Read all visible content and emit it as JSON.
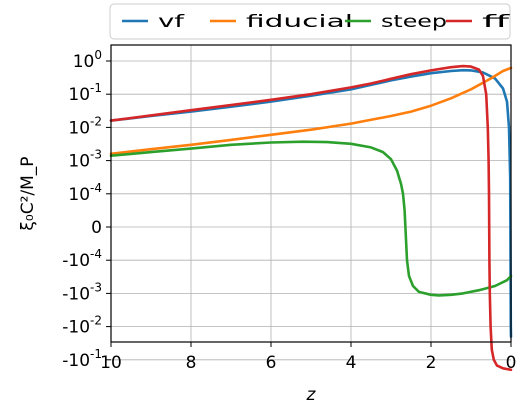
{
  "chart_data": {
    "type": "line",
    "xlabel": "z",
    "ylabel": "ξ₀C²/M_P",
    "x_reversed": true,
    "xlim": [
      10,
      0
    ],
    "y_scale": "symlog",
    "y_linthresh": 0.0001,
    "grid": true,
    "legend_position": "top",
    "x_ticks": [
      10,
      8,
      6,
      4,
      2,
      0
    ],
    "x_tick_labels": [
      "10",
      "8",
      "6",
      "4",
      "2",
      "0"
    ],
    "y_ticks": [
      1,
      0.1,
      0.01,
      0.001,
      0.0001,
      0,
      -0.0001,
      -0.001,
      -0.01,
      -0.1
    ],
    "y_tick_labels": [
      {
        "base": "10",
        "exp": "0"
      },
      {
        "base": "10",
        "exp": "-1"
      },
      {
        "base": "10",
        "exp": "-2"
      },
      {
        "base": "10",
        "exp": "-3"
      },
      {
        "base": "10",
        "exp": "-4"
      },
      {
        "base": "0",
        "exp": ""
      },
      {
        "base": "-10",
        "exp": "-4"
      },
      {
        "base": "-10",
        "exp": "-3"
      },
      {
        "base": "-10",
        "exp": "-2"
      },
      {
        "base": "-10",
        "exp": "-1"
      }
    ],
    "series": [
      {
        "name": "vf",
        "color": "#1f77b4",
        "points": [
          [
            10,
            0.016
          ],
          [
            9,
            0.022
          ],
          [
            8,
            0.03
          ],
          [
            7,
            0.042
          ],
          [
            6,
            0.06
          ],
          [
            5,
            0.09
          ],
          [
            4,
            0.14
          ],
          [
            3.5,
            0.19
          ],
          [
            3,
            0.26
          ],
          [
            2.5,
            0.34
          ],
          [
            2,
            0.43
          ],
          [
            1.5,
            0.5
          ],
          [
            1.2,
            0.53
          ],
          [
            1,
            0.52
          ],
          [
            0.7,
            0.45
          ],
          [
            0.4,
            0.3
          ],
          [
            0.2,
            0.15
          ],
          [
            0.1,
            0.06
          ],
          [
            0.05,
            0.01
          ],
          [
            0.02,
            0.0003
          ],
          [
            0.01,
            -0.0003
          ],
          [
            0.005,
            -0.01
          ],
          [
            0.001,
            -0.02
          ]
        ]
      },
      {
        "name": "fiducial",
        "color": "#ff7f0e",
        "points": [
          [
            10,
            0.0016
          ],
          [
            9,
            0.0022
          ],
          [
            8,
            0.003
          ],
          [
            7,
            0.0042
          ],
          [
            6,
            0.006
          ],
          [
            5,
            0.0085
          ],
          [
            4,
            0.013
          ],
          [
            3,
            0.022
          ],
          [
            2.5,
            0.03
          ],
          [
            2,
            0.045
          ],
          [
            1.5,
            0.075
          ],
          [
            1,
            0.14
          ],
          [
            0.5,
            0.3
          ],
          [
            0.2,
            0.5
          ],
          [
            0,
            0.62
          ]
        ]
      },
      {
        "name": "steep",
        "color": "#2ca02c",
        "points": [
          [
            10,
            0.0014
          ],
          [
            9,
            0.0018
          ],
          [
            8,
            0.0023
          ],
          [
            7,
            0.003
          ],
          [
            6,
            0.0035
          ],
          [
            5.2,
            0.0037
          ],
          [
            4.6,
            0.0036
          ],
          [
            4,
            0.0032
          ],
          [
            3.5,
            0.0025
          ],
          [
            3.2,
            0.0018
          ],
          [
            3,
            0.0011
          ],
          [
            2.85,
            0.0005
          ],
          [
            2.75,
            0.0002
          ],
          [
            2.7,
            0.0001
          ],
          [
            2.66,
            5e-05
          ],
          [
            2.64,
            0
          ],
          [
            2.62,
            -5e-05
          ],
          [
            2.6,
            -0.0001
          ],
          [
            2.55,
            -0.0003
          ],
          [
            2.45,
            -0.0006
          ],
          [
            2.3,
            -0.0009
          ],
          [
            2,
            -0.0011
          ],
          [
            1.8,
            -0.00115
          ],
          [
            1.5,
            -0.0011
          ],
          [
            1.2,
            -0.001
          ],
          [
            0.8,
            -0.0008
          ],
          [
            0.4,
            -0.0006
          ],
          [
            0.1,
            -0.0004
          ],
          [
            0,
            -0.0003
          ]
        ]
      },
      {
        "name": "ff",
        "color": "#d62728",
        "points": [
          [
            10,
            0.016
          ],
          [
            9,
            0.023
          ],
          [
            8,
            0.033
          ],
          [
            7,
            0.047
          ],
          [
            6,
            0.068
          ],
          [
            5,
            0.1
          ],
          [
            4,
            0.16
          ],
          [
            3.5,
            0.21
          ],
          [
            3,
            0.29
          ],
          [
            2.5,
            0.4
          ],
          [
            2,
            0.52
          ],
          [
            1.5,
            0.65
          ],
          [
            1.2,
            0.7
          ],
          [
            1,
            0.68
          ],
          [
            0.8,
            0.55
          ],
          [
            0.7,
            0.35
          ],
          [
            0.62,
            0.1
          ],
          [
            0.58,
            0.01
          ],
          [
            0.56,
            0.001
          ],
          [
            0.55,
            0.0001
          ],
          [
            0.545,
            0
          ],
          [
            0.54,
            -0.0001
          ],
          [
            0.53,
            -0.001
          ],
          [
            0.51,
            -0.01
          ],
          [
            0.48,
            -0.05
          ],
          [
            0.43,
            -0.1
          ],
          [
            0.35,
            -0.15
          ],
          [
            0.2,
            -0.18
          ],
          [
            0,
            -0.2
          ]
        ]
      }
    ]
  }
}
